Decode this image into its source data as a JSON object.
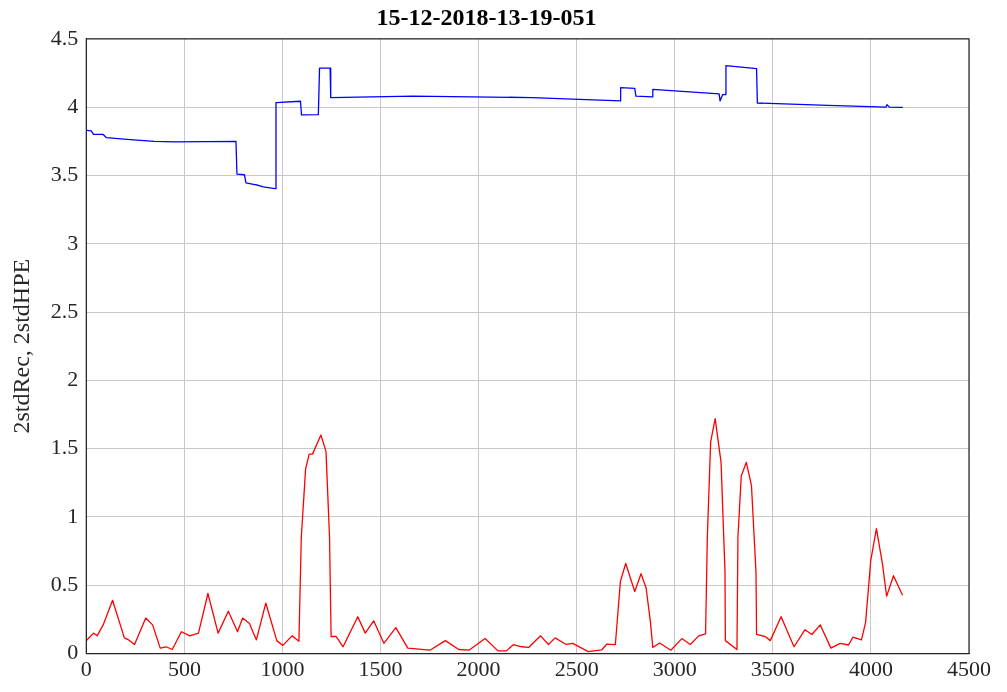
{
  "chart_data": {
    "type": "line",
    "title": "15-12-2018-13-19-051",
    "ylabel": "2stdRec, 2stdHPE",
    "xlim": [
      0,
      4500
    ],
    "xticks": [
      0,
      500,
      1000,
      1500,
      2000,
      2500,
      3000,
      3500,
      4000,
      4500
    ],
    "ylim": [
      0,
      4.5
    ],
    "yticks": [
      0,
      0.5,
      1,
      1.5,
      2,
      2.5,
      3,
      3.5,
      4,
      4.5
    ],
    "grid": true,
    "legend": false,
    "marker": "none",
    "line_style": "solid",
    "series": [
      {
        "color": "#0000ff",
        "x": [
          3,
          25,
          37,
          86,
          103,
          207,
          346,
          450,
          763,
          768,
          806,
          814,
          876,
          902,
          962,
          967,
          1092,
          1097,
          1183,
          1189,
          1243,
          1246,
          1665,
          2272,
          2724,
          2724,
          2796,
          2802,
          2885,
          2888,
          3226,
          3231,
          3244,
          3258,
          3261,
          3417,
          3421,
          3782,
          4077,
          4082,
          4094,
          4160
        ],
        "values": [
          3.83,
          3.826,
          3.8,
          3.8,
          3.776,
          3.764,
          3.749,
          3.746,
          3.749,
          3.51,
          3.505,
          3.446,
          3.428,
          3.416,
          3.403,
          4.033,
          4.043,
          3.943,
          3.945,
          4.285,
          4.285,
          4.07,
          4.08,
          4.07,
          4.045,
          4.142,
          4.137,
          4.08,
          4.075,
          4.13,
          4.097,
          4.045,
          4.092,
          4.092,
          4.304,
          4.281,
          4.03,
          4.013,
          4.0,
          4.018,
          4.0,
          3.998
        ]
      },
      {
        "color": "#ff0000",
        "x": [
          3,
          37,
          55,
          86,
          134,
          194,
          216,
          246,
          303,
          338,
          377,
          407,
          438,
          485,
          528,
          572,
          620,
          672,
          724,
          771,
          797,
          832,
          867,
          915,
          971,
          1002,
          1049,
          1084,
          1096,
          1118,
          1136,
          1153,
          1196,
          1222,
          1240,
          1248,
          1274,
          1309,
          1384,
          1422,
          1465,
          1517,
          1578,
          1639,
          1752,
          1830,
          1899,
          1951,
          2033,
          2099,
          2142,
          2177,
          2220,
          2255,
          2316,
          2356,
          2390,
          2446,
          2480,
          2559,
          2628,
          2654,
          2697,
          2723,
          2750,
          2779,
          2796,
          2828,
          2854,
          2876,
          2888,
          2923,
          2980,
          3036,
          3079,
          3122,
          3157,
          3166,
          3183,
          3206,
          3236,
          3256,
          3258,
          3317,
          3322,
          3339,
          3365,
          3391,
          3414,
          3417,
          3461,
          3487,
          3542,
          3608,
          3664,
          3699,
          3742,
          3796,
          3843,
          3886,
          3908,
          3952,
          3973,
          3999,
          4028,
          4059,
          4080,
          4115,
          4160
        ],
        "values": [
          0.1,
          0.15,
          0.13,
          0.21,
          0.39,
          0.115,
          0.1,
          0.067,
          0.26,
          0.21,
          0.04,
          0.05,
          0.03,
          0.16,
          0.13,
          0.15,
          0.44,
          0.15,
          0.31,
          0.16,
          0.26,
          0.22,
          0.1,
          0.37,
          0.095,
          0.06,
          0.13,
          0.09,
          0.85,
          1.35,
          1.46,
          1.46,
          1.6,
          1.48,
          0.85,
          0.125,
          0.125,
          0.05,
          0.27,
          0.15,
          0.24,
          0.075,
          0.19,
          0.04,
          0.025,
          0.095,
          0.03,
          0.025,
          0.11,
          0.02,
          0.02,
          0.065,
          0.05,
          0.045,
          0.13,
          0.067,
          0.115,
          0.067,
          0.075,
          0.015,
          0.028,
          0.07,
          0.065,
          0.53,
          0.66,
          0.53,
          0.455,
          0.585,
          0.48,
          0.23,
          0.045,
          0.078,
          0.025,
          0.11,
          0.067,
          0.13,
          0.145,
          0.85,
          1.55,
          1.72,
          1.4,
          0.6,
          0.095,
          0.03,
          0.85,
          1.3,
          1.4,
          1.23,
          0.6,
          0.14,
          0.125,
          0.095,
          0.27,
          0.05,
          0.175,
          0.14,
          0.21,
          0.04,
          0.075,
          0.063,
          0.12,
          0.1,
          0.23,
          0.68,
          0.915,
          0.655,
          0.42,
          0.57,
          0.43
        ]
      }
    ]
  }
}
